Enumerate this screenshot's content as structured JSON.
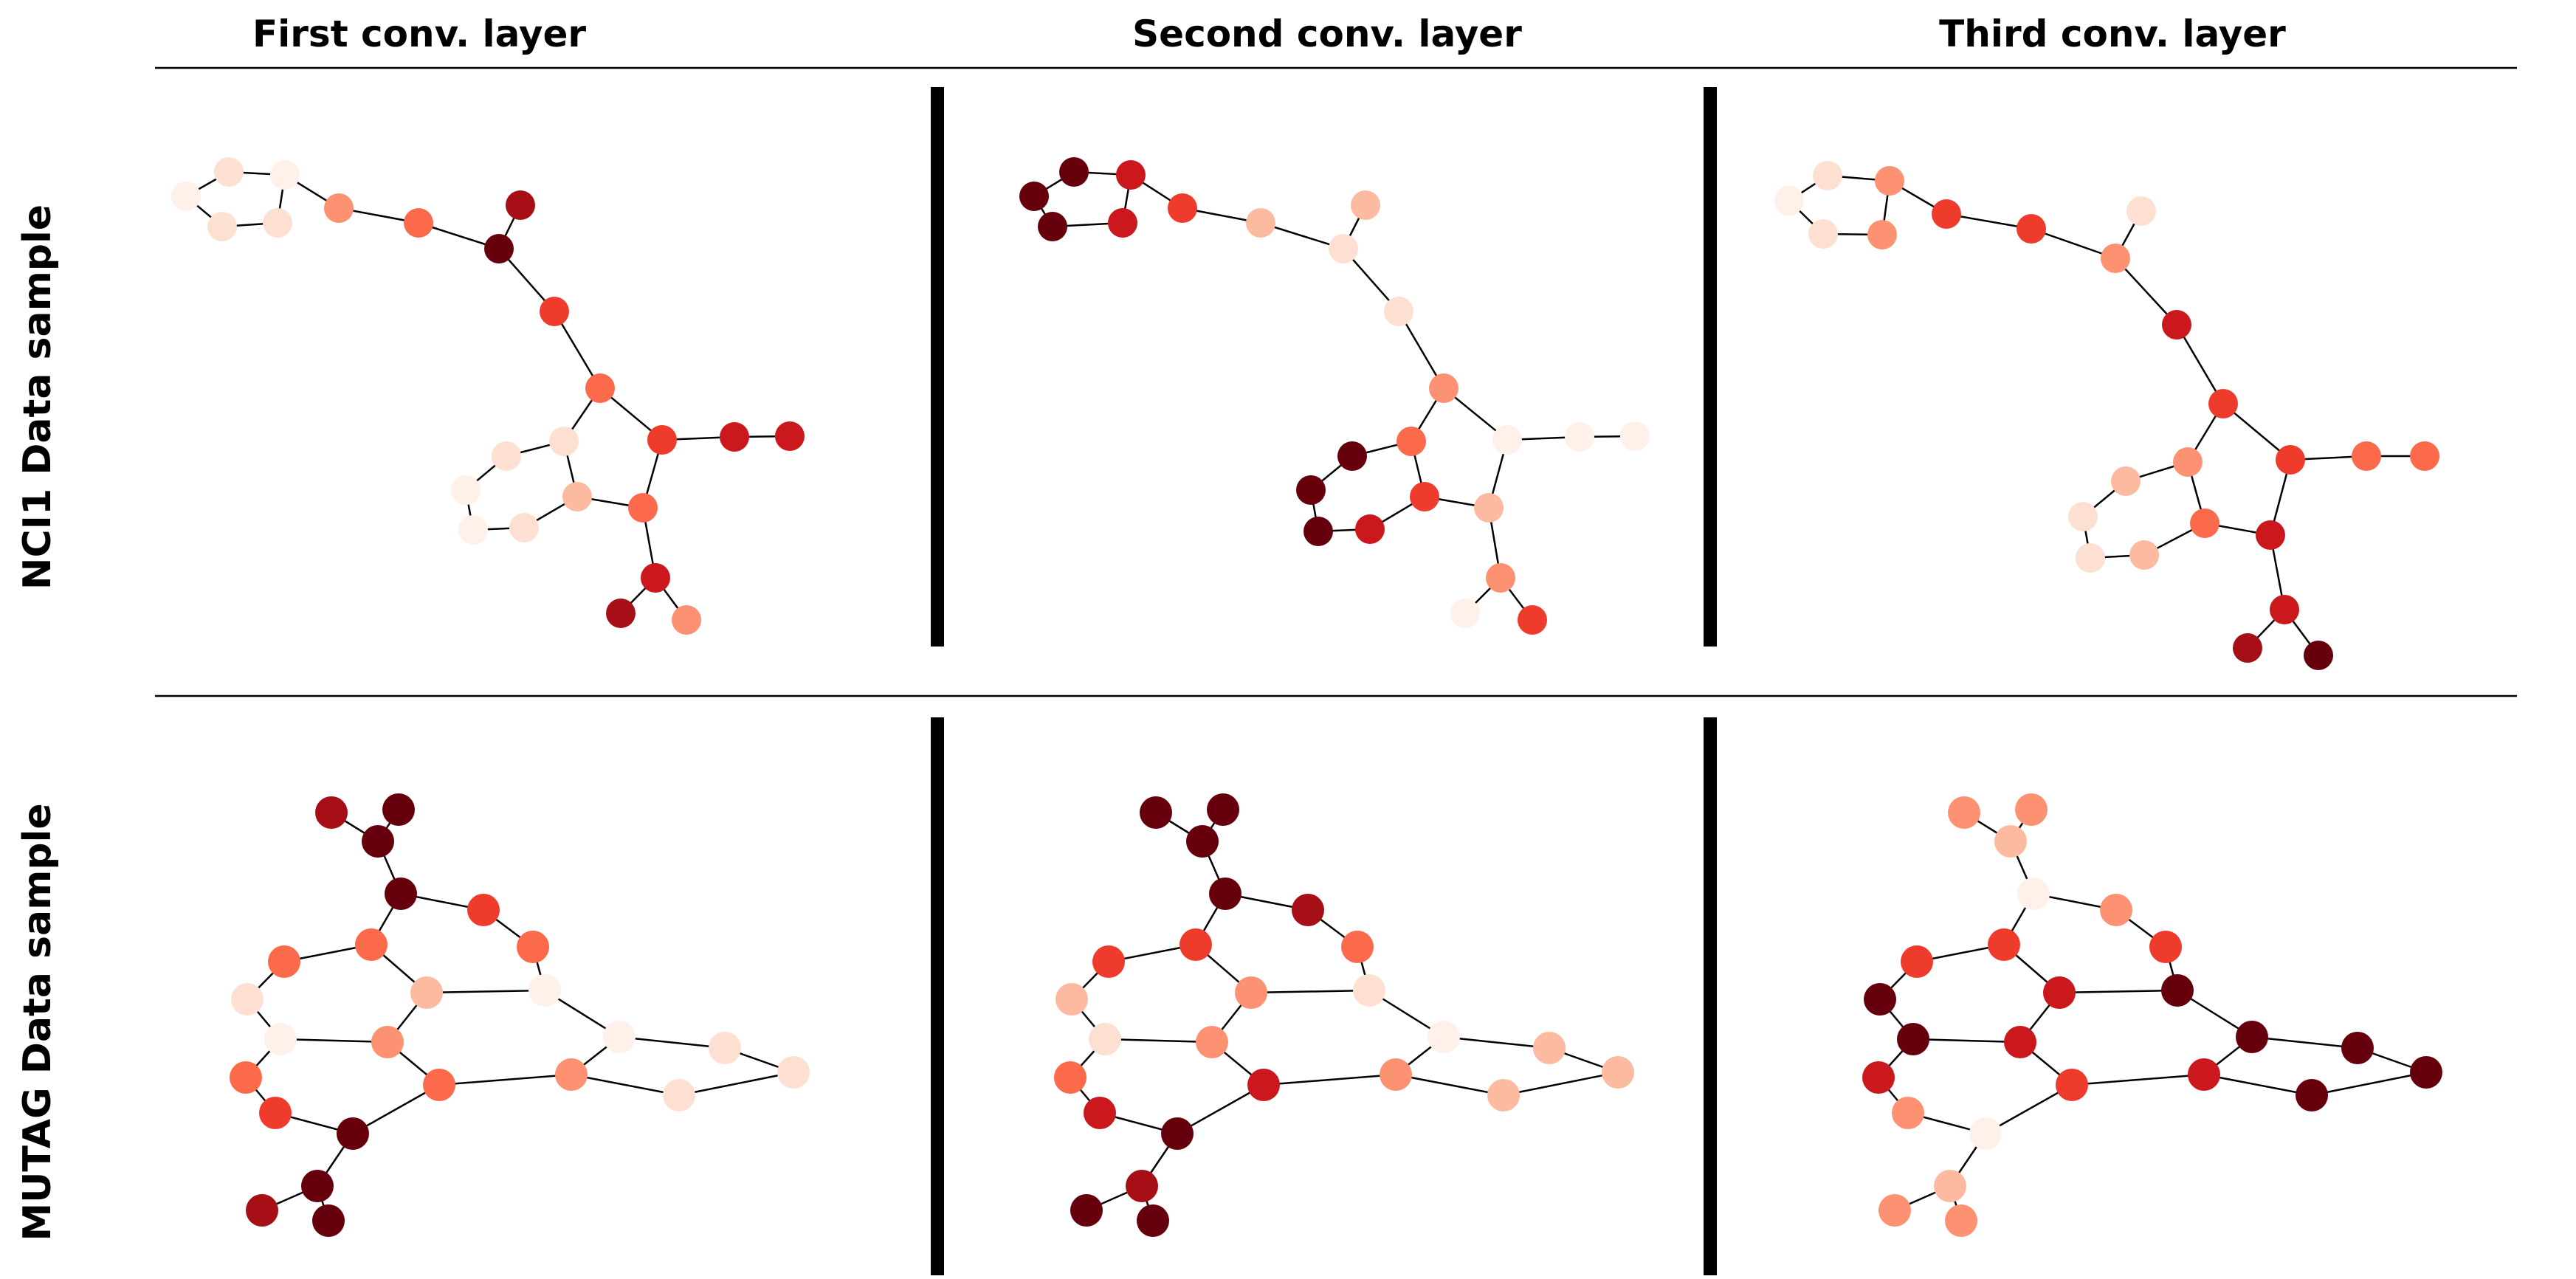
{
  "column_titles": [
    "First conv. layer",
    "Second conv. layer",
    "Third conv. layer"
  ],
  "row_titles": [
    "NCI1 Data sample",
    "MUTAG Data sample"
  ],
  "palette": {
    "c0": "#fff0e9",
    "c1": "#fde0d2",
    "c2": "#fcbba1",
    "c3": "#fc9272",
    "c4": "#fb6a4a",
    "c5": "#ef3b2c",
    "c6": "#cb181d",
    "c7": "#a50f15",
    "c8": "#67000d"
  },
  "graphs": [
    {
      "id": "nci1",
      "edges": [
        [
          0,
          1
        ],
        [
          1,
          2
        ],
        [
          2,
          3
        ],
        [
          3,
          4
        ],
        [
          4,
          5
        ],
        [
          5,
          0
        ],
        [
          4,
          6
        ],
        [
          6,
          7
        ],
        [
          7,
          8
        ],
        [
          8,
          9
        ],
        [
          8,
          10
        ],
        [
          10,
          11
        ],
        [
          11,
          12
        ],
        [
          12,
          13
        ],
        [
          13,
          14
        ],
        [
          14,
          15
        ],
        [
          15,
          16
        ],
        [
          16,
          17
        ],
        [
          17,
          11
        ],
        [
          15,
          18
        ],
        [
          18,
          19
        ],
        [
          18,
          20
        ],
        [
          20,
          21
        ],
        [
          21,
          22
        ],
        [
          21,
          23
        ],
        [
          20,
          24
        ],
        [
          24,
          25
        ]
      ],
      "layers": [
        [
          0,
          0,
          0,
          0,
          0,
          3,
          4,
          5,
          8,
          7,
          4,
          3,
          1,
          0,
          0,
          1,
          2,
          4,
          4,
          6,
          6,
          3,
          3,
          7,
          6,
          6
        ],
        [
          8,
          8,
          8,
          8,
          6,
          5,
          4,
          2,
          1,
          2,
          1,
          3,
          5,
          8,
          8,
          8,
          6,
          7,
          4,
          6,
          3,
          1,
          3,
          4,
          1,
          1
        ],
        [
          1,
          1,
          1,
          2,
          2,
          4,
          4,
          5,
          3,
          1,
          3,
          5,
          3,
          1,
          0,
          1,
          1,
          4,
          3,
          6,
          6,
          3,
          6,
          6,
          8,
          4
        ]
      ]
    },
    {
      "id": "mutag",
      "edges": [
        [
          0,
          2
        ],
        [
          1,
          2
        ],
        [
          2,
          3
        ],
        [
          3,
          4
        ],
        [
          4,
          5
        ],
        [
          5,
          6
        ],
        [
          3,
          7
        ],
        [
          7,
          10
        ],
        [
          10,
          8
        ],
        [
          8,
          9
        ],
        [
          9,
          11
        ],
        [
          11,
          12
        ],
        [
          11,
          13
        ],
        [
          12,
          14
        ],
        [
          13,
          15
        ],
        [
          14,
          15
        ],
        [
          15,
          16
        ],
        [
          16,
          17
        ],
        [
          17,
          18
        ],
        [
          18,
          19
        ],
        [
          19,
          20
        ],
        [
          20,
          21
        ],
        [
          21,
          22
        ],
        [
          22,
          23
        ],
        [
          13,
          24
        ],
        [
          24,
          25
        ],
        [
          25,
          26
        ],
        [
          26,
          12
        ],
        [
          25,
          27
        ],
        [
          27,
          28
        ],
        [
          27,
          29
        ],
        [
          26,
          28
        ]
      ],
      "layers": [
        [
          7,
          8,
          8,
          8,
          5,
          4,
          0,
          4,
          1,
          3,
          1,
          0,
          4,
          1,
          3,
          4,
          2,
          0,
          0,
          0,
          0,
          0,
          4,
          5,
          8,
          7,
          1,
          8,
          7,
          8
        ],
        [
          8,
          8,
          8,
          8,
          7,
          5,
          1,
          4,
          3,
          3,
          2,
          1,
          5,
          3,
          5,
          4,
          3,
          1,
          1,
          3,
          2,
          2,
          5,
          7,
          6,
          7,
          1,
          7,
          8,
          8
        ],
        [
          3,
          3,
          2,
          0,
          3,
          5,
          8,
          6,
          6,
          4,
          7,
          8,
          4,
          6,
          6,
          8,
          8,
          8,
          8,
          8,
          8,
          8,
          5,
          4,
          3,
          0,
          6,
          3,
          3,
          3
        ]
      ]
    }
  ]
}
